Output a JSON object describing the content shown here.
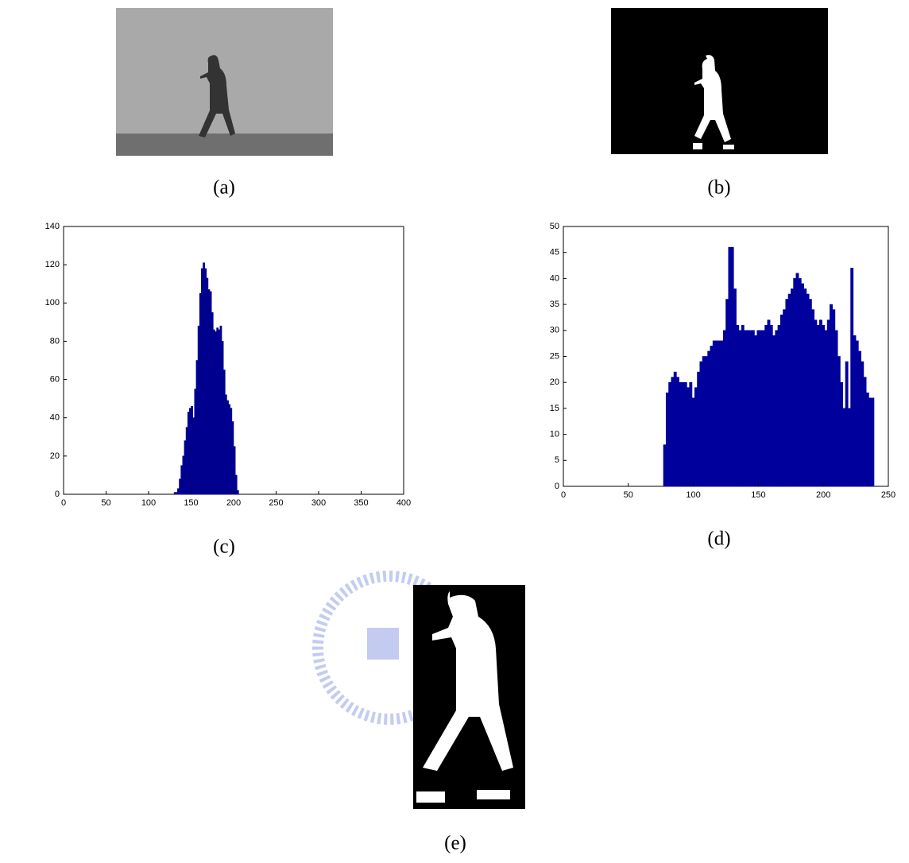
{
  "captions": [
    "(a)",
    "(b)",
    "(c)",
    "(d)",
    "(e)"
  ],
  "chart_data": [
    {
      "type": "histogram",
      "color": "#00008f",
      "bins": [
        0,
        130,
        132,
        134,
        136,
        138,
        140,
        142,
        144,
        146,
        148,
        150,
        152,
        154,
        156,
        158,
        160,
        162,
        164,
        166,
        168,
        170,
        172,
        174,
        176,
        178,
        180,
        182,
        184,
        186,
        188,
        190,
        192,
        194,
        196,
        198,
        200,
        202,
        204,
        206,
        400
      ],
      "values": [
        0,
        1,
        1,
        3,
        8,
        15,
        20,
        28,
        35,
        43,
        45,
        46,
        40,
        55,
        70,
        88,
        105,
        118,
        121,
        118,
        113,
        107,
        106,
        95,
        86,
        85,
        87,
        86,
        88,
        80,
        65,
        52,
        49,
        47,
        45,
        38,
        25,
        10,
        2,
        0
      ],
      "xlim": [
        0,
        400
      ],
      "xticks": [
        0,
        50,
        100,
        150,
        200,
        250,
        300,
        350,
        400
      ],
      "ylim": [
        0,
        140
      ],
      "yticks": [
        0,
        20,
        40,
        60,
        80,
        100,
        120,
        140
      ]
    },
    {
      "type": "histogram",
      "color": "#00009c",
      "bins": [
        0,
        77,
        79,
        81,
        83,
        85,
        87,
        89,
        91,
        93,
        95,
        97,
        99,
        101,
        103,
        105,
        107,
        109,
        111,
        113,
        115,
        117,
        119,
        121,
        123,
        125,
        127,
        129,
        131,
        133,
        135,
        137,
        139,
        141,
        143,
        145,
        147,
        149,
        151,
        153,
        155,
        157,
        159,
        161,
        163,
        165,
        167,
        169,
        171,
        173,
        175,
        177,
        179,
        181,
        183,
        185,
        187,
        189,
        191,
        193,
        195,
        197,
        199,
        201,
        203,
        205,
        207,
        209,
        211,
        213,
        215,
        217,
        219,
        221,
        223,
        225,
        227,
        229,
        231,
        233,
        235,
        237,
        239,
        250
      ],
      "values": [
        0,
        8,
        18,
        20,
        21,
        22,
        21,
        20,
        20,
        20,
        19,
        20,
        17,
        19,
        22,
        24,
        25,
        25,
        26,
        27,
        28,
        28,
        28,
        28,
        30,
        36,
        46,
        46,
        38,
        31,
        30,
        31,
        30,
        30,
        30,
        30,
        29,
        30,
        30,
        30,
        31,
        32,
        31,
        29,
        30,
        31,
        33,
        34,
        36,
        37,
        38,
        40,
        41,
        40,
        39,
        38,
        37,
        36,
        34,
        32,
        31,
        32,
        31,
        30,
        32,
        35,
        34,
        30,
        25,
        20,
        15,
        24,
        15,
        42,
        29,
        28,
        26,
        24,
        21,
        18,
        17,
        17,
        0
      ],
      "xlim": [
        0,
        250
      ],
      "xticks": [
        0,
        50,
        100,
        150,
        200,
        250
      ],
      "ylim": [
        0,
        50
      ],
      "yticks": [
        0,
        5,
        10,
        15,
        20,
        25,
        30,
        35,
        40,
        45,
        50
      ]
    }
  ]
}
